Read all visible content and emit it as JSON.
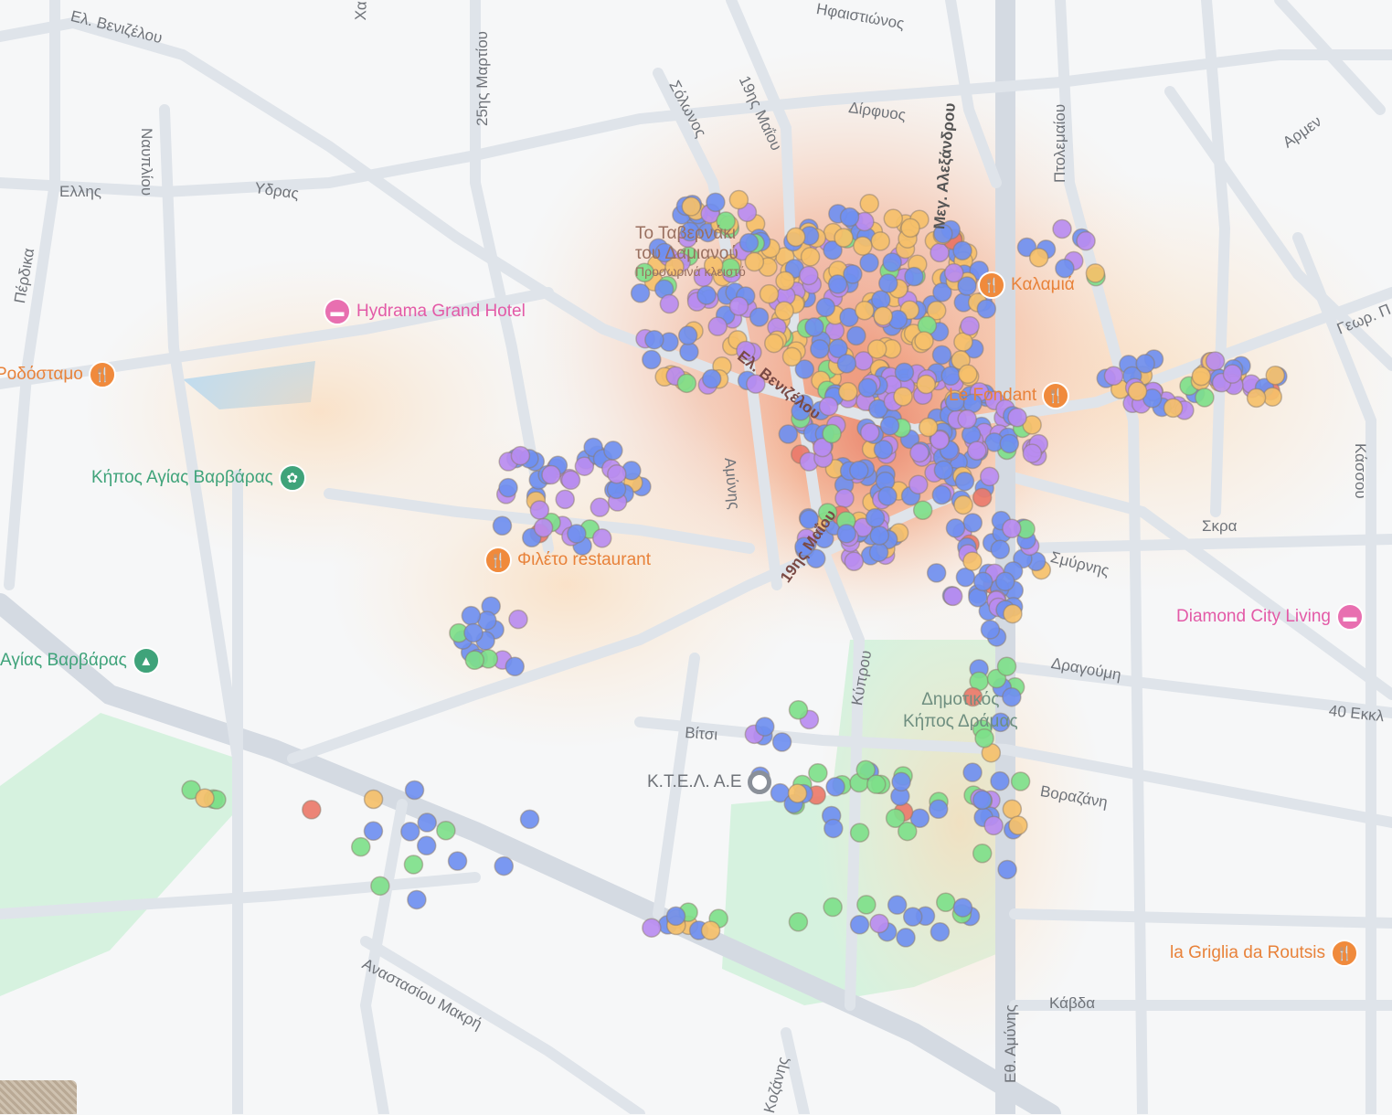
{
  "map": {
    "colors": {
      "background": "#f6f7f8",
      "road": "#dfe4ea",
      "major_road": "#d4dae2",
      "park": "#d6f2df",
      "water": "#aadaff",
      "heat_core": "#e8785f",
      "heat_outer": "#fde6cc"
    },
    "point_categories": [
      {
        "color": "#6f8ff0"
      },
      {
        "color": "#b98cf0"
      },
      {
        "color": "#f5c06a"
      },
      {
        "color": "#7ee08a"
      },
      {
        "color": "#ea7a6a"
      }
    ],
    "streets": [
      "Ελ. Βενιζέλου",
      "Χα",
      "25ης Μαρτίου",
      "Ηφαιστιώνος",
      "Σόλωνος",
      "19ης Μαΐου",
      "Δίρφυος",
      "Μεγ. Αλεξάνδρου",
      "Πτολεμαίου",
      "Αρμεν",
      "Γεωρ. Π",
      "Ελλης",
      "Υδρας",
      "Ναυπλίου",
      "Πέρδικα",
      "Ελ. Βενιζέλου",
      "19ης Μαΐου",
      "Κάσσου",
      "Σκρα",
      "Σμύρνης",
      "Δραγούμη",
      "40 Εκκλ",
      "Βίτσι",
      "Βοραζάνη",
      "Κάβδα",
      "Αναστασίου Μακρή",
      "Εθ. Αμύνης",
      "Κοζάνης",
      "Κύπρου",
      "Αμύνης"
    ],
    "pois": [
      {
        "name": "Το Ταβερνάκι",
        "name2": "του Δαμιανού",
        "status": "Προσωρινά κλειστό",
        "type": "restaurant"
      },
      {
        "name": "Καλαμιά",
        "type": "restaurant"
      },
      {
        "name": "Le Fondant",
        "type": "restaurant"
      },
      {
        "name": "Hydrama Grand Hotel",
        "type": "hotel"
      },
      {
        "name": "Ροδόσταμο",
        "type": "restaurant"
      },
      {
        "name": "Κήπος Αγίας Βαρβάρας",
        "type": "park"
      },
      {
        "name": "Φιλέτο restaurant",
        "type": "restaurant"
      },
      {
        "name": "Αγίας Βαρβάρας",
        "type": "park"
      },
      {
        "name": "Δημοτικός",
        "name2": "Κήπος Δράμας",
        "type": "park"
      },
      {
        "name": "Κ.Τ.Ε.Λ. Α.Ε",
        "type": "bus-station"
      },
      {
        "name": "Diamond City Living",
        "type": "hotel"
      },
      {
        "name": "la Griglia da Routsis",
        "type": "restaurant"
      }
    ]
  }
}
